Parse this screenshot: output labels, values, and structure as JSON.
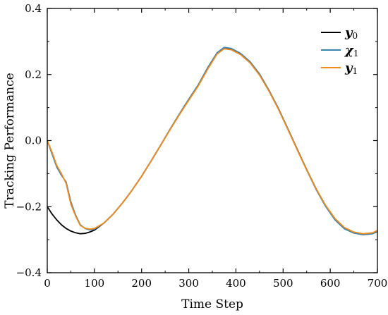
{
  "chart_data": {
    "type": "line",
    "xlabel": "Time Step",
    "ylabel": "Tracking Performance",
    "xlim": [
      0,
      700
    ],
    "ylim": [
      -0.4,
      0.4
    ],
    "x_ticks": [
      "0",
      "100",
      "200",
      "300",
      "400",
      "500",
      "600",
      "700"
    ],
    "y_ticks": [
      "-0.4",
      "-0.2",
      "0.0",
      "0.2",
      "0.4"
    ],
    "grid": false,
    "legend_position": "top-right",
    "series": [
      {
        "name": "y0",
        "name_main": "y",
        "name_sub": "0",
        "color": "#000000",
        "points": [
          [
            0,
            -0.2
          ],
          [
            10,
            -0.222
          ],
          [
            20,
            -0.24
          ],
          [
            30,
            -0.255
          ],
          [
            40,
            -0.266
          ],
          [
            50,
            -0.274
          ],
          [
            60,
            -0.279
          ],
          [
            70,
            -0.282
          ],
          [
            80,
            -0.281
          ],
          [
            90,
            -0.277
          ],
          [
            100,
            -0.271
          ],
          [
            120,
            -0.25
          ],
          [
            140,
            -0.222
          ],
          [
            160,
            -0.188
          ],
          [
            180,
            -0.15
          ],
          [
            200,
            -0.108
          ],
          [
            220,
            -0.062
          ],
          [
            240,
            -0.015
          ],
          [
            260,
            0.033
          ],
          [
            280,
            0.08
          ],
          [
            300,
            0.125
          ],
          [
            320,
            0.168
          ],
          [
            340,
            0.22
          ],
          [
            360,
            0.265
          ],
          [
            375,
            0.28
          ],
          [
            390,
            0.277
          ],
          [
            410,
            0.262
          ],
          [
            430,
            0.237
          ],
          [
            450,
            0.2
          ],
          [
            470,
            0.152
          ],
          [
            490,
            0.097
          ],
          [
            510,
            0.036
          ],
          [
            530,
            -0.026
          ],
          [
            550,
            -0.088
          ],
          [
            570,
            -0.146
          ],
          [
            590,
            -0.197
          ],
          [
            610,
            -0.238
          ],
          [
            630,
            -0.265
          ],
          [
            650,
            -0.279
          ],
          [
            670,
            -0.284
          ],
          [
            690,
            -0.281
          ],
          [
            700,
            -0.276
          ]
        ]
      },
      {
        "name": "χ1",
        "name_main": "χ",
        "name_sub": "1",
        "color": "#3a84b0",
        "points": [
          [
            0,
            0.0
          ],
          [
            10,
            -0.04
          ],
          [
            20,
            -0.08
          ],
          [
            30,
            -0.105
          ],
          [
            40,
            -0.125
          ],
          [
            50,
            -0.185
          ],
          [
            60,
            -0.225
          ],
          [
            70,
            -0.255
          ],
          [
            80,
            -0.266
          ],
          [
            90,
            -0.27
          ],
          [
            100,
            -0.268
          ],
          [
            120,
            -0.25
          ],
          [
            140,
            -0.222
          ],
          [
            160,
            -0.188
          ],
          [
            180,
            -0.15
          ],
          [
            200,
            -0.108
          ],
          [
            220,
            -0.062
          ],
          [
            240,
            -0.015
          ],
          [
            260,
            0.033
          ],
          [
            280,
            0.08
          ],
          [
            300,
            0.125
          ],
          [
            320,
            0.168
          ],
          [
            340,
            0.22
          ],
          [
            360,
            0.266
          ],
          [
            375,
            0.282
          ],
          [
            390,
            0.279
          ],
          [
            410,
            0.264
          ],
          [
            430,
            0.239
          ],
          [
            450,
            0.202
          ],
          [
            470,
            0.153
          ],
          [
            490,
            0.098
          ],
          [
            510,
            0.036
          ],
          [
            530,
            -0.027
          ],
          [
            550,
            -0.089
          ],
          [
            570,
            -0.148
          ],
          [
            590,
            -0.199
          ],
          [
            610,
            -0.24
          ],
          [
            630,
            -0.267
          ],
          [
            650,
            -0.28
          ],
          [
            670,
            -0.285
          ],
          [
            690,
            -0.282
          ],
          [
            700,
            -0.275
          ]
        ]
      },
      {
        "name": "y1",
        "name_main": "y",
        "name_sub": "1",
        "color": "#f28a1c",
        "points": [
          [
            0,
            0.0
          ],
          [
            10,
            -0.035
          ],
          [
            20,
            -0.075
          ],
          [
            30,
            -0.1
          ],
          [
            40,
            -0.13
          ],
          [
            50,
            -0.192
          ],
          [
            60,
            -0.228
          ],
          [
            70,
            -0.257
          ],
          [
            80,
            -0.265
          ],
          [
            90,
            -0.268
          ],
          [
            100,
            -0.266
          ],
          [
            120,
            -0.25
          ],
          [
            140,
            -0.222
          ],
          [
            160,
            -0.188
          ],
          [
            180,
            -0.15
          ],
          [
            200,
            -0.108
          ],
          [
            220,
            -0.062
          ],
          [
            240,
            -0.015
          ],
          [
            260,
            0.032
          ],
          [
            280,
            0.078
          ],
          [
            300,
            0.122
          ],
          [
            320,
            0.165
          ],
          [
            340,
            0.216
          ],
          [
            360,
            0.262
          ],
          [
            375,
            0.278
          ],
          [
            390,
            0.275
          ],
          [
            410,
            0.26
          ],
          [
            430,
            0.235
          ],
          [
            450,
            0.198
          ],
          [
            470,
            0.15
          ],
          [
            490,
            0.095
          ],
          [
            510,
            0.034
          ],
          [
            530,
            -0.028
          ],
          [
            550,
            -0.089
          ],
          [
            570,
            -0.146
          ],
          [
            590,
            -0.196
          ],
          [
            610,
            -0.236
          ],
          [
            630,
            -0.263
          ],
          [
            650,
            -0.277
          ],
          [
            670,
            -0.282
          ],
          [
            690,
            -0.279
          ],
          [
            700,
            -0.272
          ]
        ]
      }
    ]
  }
}
